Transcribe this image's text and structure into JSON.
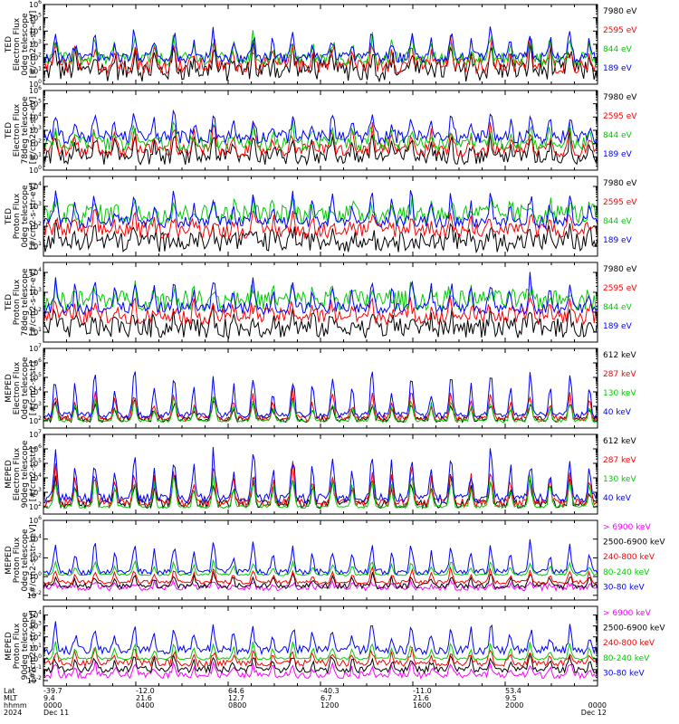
{
  "chart_data": {
    "type": "line",
    "panels": [
      {
        "ylabel": [
          "TED",
          "Electron Flux",
          "0deg telescope",
          "[#/cm2-s-str-eV]"
        ],
        "ytick_exponents": [
          "0",
          "1",
          "2",
          "3",
          "4",
          "5",
          "6"
        ],
        "y_range_log10": [
          0,
          6
        ],
        "series": [
          {
            "name": "7980 eV",
            "color": "#000000",
            "base": 1.0,
            "spread": 0.8,
            "peak": 3.0
          },
          {
            "name": "2595 eV",
            "color": "#ff0000",
            "base": 1.4,
            "spread": 0.6,
            "peak": 3.5
          },
          {
            "name": "844 eV",
            "color": "#00cc00",
            "base": 1.9,
            "spread": 0.5,
            "peak": 3.7
          },
          {
            "name": "189 eV",
            "color": "#0000ff",
            "base": 2.0,
            "spread": 0.4,
            "peak": 4.2
          }
        ]
      },
      {
        "ylabel": [
          "TED",
          "Electron Flux",
          "78deg telescope",
          "[#/cm2-s-str-eV]"
        ],
        "ytick_exponents": [
          "0",
          "1",
          "2",
          "3",
          "4",
          "5",
          "6"
        ],
        "y_range_log10": [
          0,
          6
        ],
        "series": [
          {
            "name": "7980 eV",
            "color": "#000000",
            "base": 1.0,
            "spread": 0.6,
            "peak": 3.0
          },
          {
            "name": "2595 eV",
            "color": "#ff0000",
            "base": 1.5,
            "spread": 0.5,
            "peak": 3.4
          },
          {
            "name": "844 eV",
            "color": "#00cc00",
            "base": 2.0,
            "spread": 0.5,
            "peak": 3.6
          },
          {
            "name": "189 eV",
            "color": "#0000ff",
            "base": 2.5,
            "spread": 0.5,
            "peak": 4.5
          }
        ]
      },
      {
        "ylabel": [
          "TED",
          "Proton Flux",
          "0deg telescope",
          "[#/cm2-s-str-eV]"
        ],
        "ytick_exponents": [
          "1",
          "2",
          "3",
          "4"
        ],
        "y_range_log10": [
          0.5,
          4.5
        ],
        "series": [
          {
            "name": "7980 eV",
            "color": "#000000",
            "base": 1.2,
            "spread": 0.5,
            "peak": 2.0
          },
          {
            "name": "2595 eV",
            "color": "#ff0000",
            "base": 1.8,
            "spread": 0.4,
            "peak": 2.6
          },
          {
            "name": "844 eV",
            "color": "#00cc00",
            "base": 2.6,
            "spread": 0.5,
            "peak": 3.3
          },
          {
            "name": "189 eV",
            "color": "#0000ff",
            "base": 2.2,
            "spread": 0.3,
            "peak": 3.9
          }
        ]
      },
      {
        "ylabel": [
          "TED",
          "Proton Flux",
          "78deg telescope",
          "[#/cm2-s-str-eV]"
        ],
        "ytick_exponents": [
          "1",
          "2",
          "3",
          "4"
        ],
        "y_range_log10": [
          0.5,
          4.5
        ],
        "series": [
          {
            "name": "7980 eV",
            "color": "#000000",
            "base": 1.2,
            "spread": 0.5,
            "peak": 2.0
          },
          {
            "name": "2595 eV",
            "color": "#ff0000",
            "base": 1.8,
            "spread": 0.4,
            "peak": 2.6
          },
          {
            "name": "844 eV",
            "color": "#00cc00",
            "base": 2.6,
            "spread": 0.5,
            "peak": 3.3
          },
          {
            "name": "189 eV",
            "color": "#0000ff",
            "base": 2.2,
            "spread": 0.3,
            "peak": 3.9
          }
        ]
      },
      {
        "ylabel": [
          "MEPED",
          "Electron Flux",
          "0deg telescope",
          "[#/cm2-s-str]"
        ],
        "ytick_exponents": [
          "2",
          "3",
          "4",
          "5",
          "6",
          "7"
        ],
        "y_range_log10": [
          1.5,
          7
        ],
        "series": [
          {
            "name": "612 keV",
            "color": "#000000",
            "base": 2.1,
            "spread": 0.2,
            "peak": 3.5
          },
          {
            "name": "287 keV",
            "color": "#ff0000",
            "base": 2.2,
            "spread": 0.2,
            "peak": 4.2
          },
          {
            "name": "130 keV",
            "color": "#00cc00",
            "base": 2.0,
            "spread": 0.1,
            "peak": 3.8
          },
          {
            "name": "40 keV",
            "color": "#0000ff",
            "base": 2.4,
            "spread": 0.2,
            "peak": 5.6
          }
        ]
      },
      {
        "ylabel": [
          "MEPED",
          "Electron Flux",
          "90deg telescope",
          "[#/cm2-s-str]"
        ],
        "ytick_exponents": [
          "2",
          "3",
          "4",
          "5",
          "6",
          "7"
        ],
        "y_range_log10": [
          1.5,
          7
        ],
        "series": [
          {
            "name": "612 keV",
            "color": "#000000",
            "base": 2.2,
            "spread": 0.3,
            "peak": 4.2
          },
          {
            "name": "287 keV",
            "color": "#ff0000",
            "base": 2.3,
            "spread": 0.3,
            "peak": 5.0
          },
          {
            "name": "130 keV",
            "color": "#00cc00",
            "base": 2.0,
            "spread": 0.1,
            "peak": 4.6
          },
          {
            "name": "40 keV",
            "color": "#0000ff",
            "base": 2.6,
            "spread": 0.3,
            "peak": 6.2
          }
        ]
      },
      {
        "ylabel": [
          "MEPED",
          "Proton Flux",
          "0deg telescope",
          "[#/cm2-s-str-keV]"
        ],
        "ytick_labels": [
          "10^-2",
          "10^0",
          "10^2",
          "10^4",
          "10^6"
        ],
        "y_range_log10": [
          -2.5,
          6
        ],
        "series": [
          {
            "name": "> 6900 keV",
            "color": "#ff00ff",
            "base": -1.2,
            "spread": 0.3,
            "peak": -0.5
          },
          {
            "name": "2500-6900 keV",
            "color": "#000000",
            "base": -1.0,
            "spread": 0.3,
            "peak": 0.5
          },
          {
            "name": "240-800 keV",
            "color": "#ff0000",
            "base": -0.6,
            "spread": 0.2,
            "peak": 1.0
          },
          {
            "name": "80-240 keV",
            "color": "#00cc00",
            "base": 0.2,
            "spread": 0.1,
            "peak": 1.8
          },
          {
            "name": "30-80 keV",
            "color": "#0000ff",
            "base": 0.5,
            "spread": 0.3,
            "peak": 4.0
          }
        ]
      },
      {
        "ylabel": [
          "MEPED",
          "Proton Flux",
          "90deg telescope",
          "[#/cm2-s-str-keV]"
        ],
        "ytick_labels": [
          "10^-2",
          "10^-1",
          "10^0",
          "10^1",
          "10^2",
          "10^3",
          "10^4"
        ],
        "y_range_log10": [
          -2.5,
          4.8
        ],
        "series": [
          {
            "name": "> 6900 keV",
            "color": "#ff00ff",
            "base": -1.5,
            "spread": 0.3,
            "peak": -0.3
          },
          {
            "name": "2500-6900 keV",
            "color": "#000000",
            "base": -1.0,
            "spread": 0.3,
            "peak": 0.5
          },
          {
            "name": "240-800 keV",
            "color": "#ff0000",
            "base": -0.4,
            "spread": 0.3,
            "peak": 1.0
          },
          {
            "name": "80-240 keV",
            "color": "#00cc00",
            "base": 0.0,
            "spread": 0.1,
            "peak": 1.6
          },
          {
            "name": "30-80 keV",
            "color": "#0000ff",
            "base": 0.8,
            "spread": 0.4,
            "peak": 3.5
          }
        ]
      }
    ],
    "x_axis": {
      "row_labels": [
        "Lat",
        "MLT",
        "hhmm",
        "2024"
      ],
      "ticks": [
        {
          "hour": 0,
          "lat": "-39.7",
          "mlt": "9.4",
          "hhmm": "0000",
          "date": "Dec 11"
        },
        {
          "hour": 4,
          "lat": "-12.0",
          "mlt": "21.6",
          "hhmm": "0400",
          "date": ""
        },
        {
          "hour": 8,
          "lat": "64.6",
          "mlt": "12.7",
          "hhmm": "0800",
          "date": ""
        },
        {
          "hour": 12,
          "lat": "-40.3",
          "mlt": "6.7",
          "hhmm": "1200",
          "date": ""
        },
        {
          "hour": 16,
          "lat": "-11.0",
          "mlt": "21.6",
          "hhmm": "1600",
          "date": ""
        },
        {
          "hour": 20,
          "lat": "53.4",
          "mlt": "9.5",
          "hhmm": "2000",
          "date": ""
        },
        {
          "hour": 24,
          "lat": "",
          "mlt": "",
          "hhmm": "0000",
          "date": "Dec 12"
        }
      ],
      "x_range_hours": [
        0,
        24
      ],
      "orbits": 14
    }
  }
}
